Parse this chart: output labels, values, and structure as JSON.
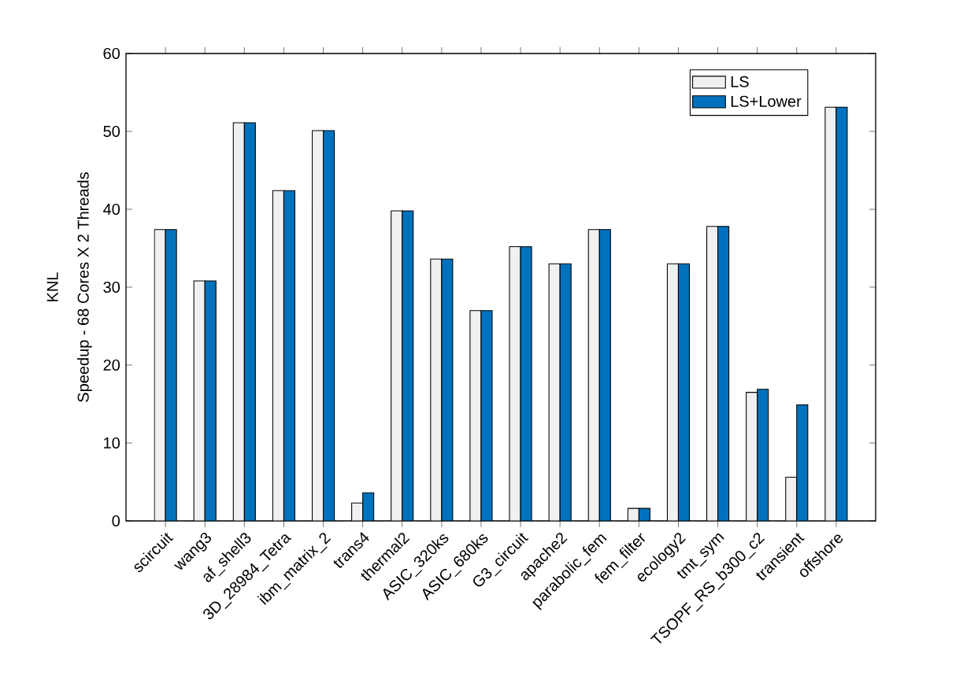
{
  "chart_data": {
    "type": "bar",
    "ylabel": "Speedup - 68 Cores X 2 Threads",
    "annotations": [
      "KNL"
    ],
    "categories": [
      "scircuit",
      "wang3",
      "af_shell3",
      "3D_28984_Tetra",
      "ibm_matrix_2",
      "trans4",
      "thermal2",
      "ASIC_320ks",
      "ASIC_680ks",
      "G3_circuit",
      "apache2",
      "parabolic_fem",
      "fem_filter",
      "ecology2",
      "tmt_sym",
      "TSOPF_RS_b300_c2",
      "transient",
      "offshore"
    ],
    "series": [
      {
        "name": "LS",
        "color": "#f0f0f0",
        "values": [
          37.4,
          30.8,
          51.1,
          42.4,
          50.1,
          2.3,
          39.8,
          33.6,
          27.0,
          35.2,
          33.0,
          37.4,
          1.6,
          33.0,
          37.8,
          16.5,
          5.6,
          53.1
        ]
      },
      {
        "name": "LS+Lower",
        "color": "#0072bd",
        "values": [
          37.4,
          30.8,
          51.1,
          42.4,
          50.1,
          3.6,
          39.8,
          33.6,
          27.0,
          35.2,
          33.0,
          37.4,
          1.6,
          33.0,
          37.8,
          16.9,
          14.9,
          53.1
        ]
      }
    ],
    "ylim": [
      0,
      60
    ],
    "yticks": [
      0,
      10,
      20,
      30,
      40,
      50,
      60
    ],
    "legend": "top right",
    "grid": false
  }
}
